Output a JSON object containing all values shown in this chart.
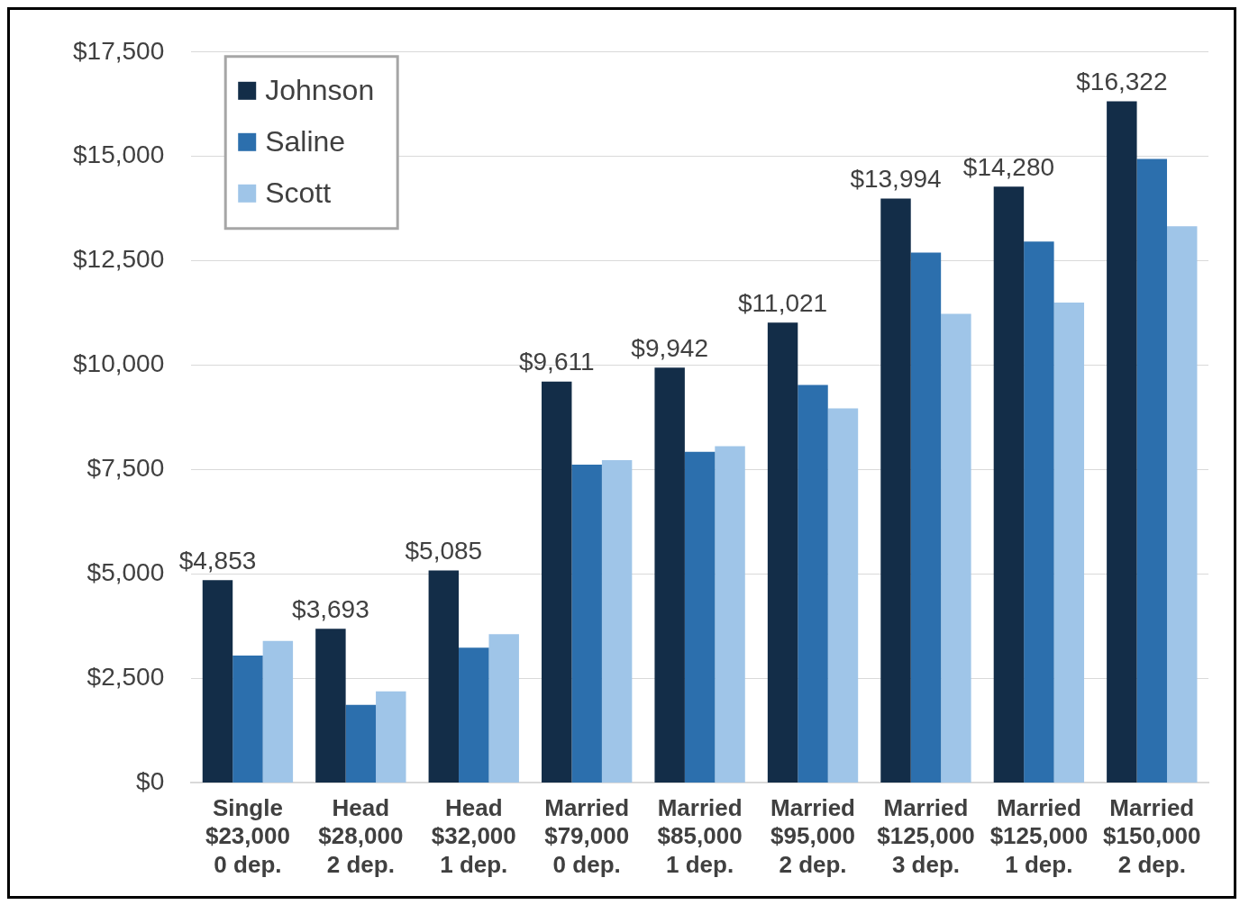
{
  "chart_data": {
    "type": "bar",
    "categories": [
      "Single\n$23,000\n0 dep.",
      "Head\n$28,000\n2 dep.",
      "Head\n$32,000\n1 dep.",
      "Married\n$79,000\n0 dep.",
      "Married\n$85,000\n1 dep.",
      "Married\n$95,000\n2 dep.",
      "Married\n$125,000\n3 dep.",
      "Married\n$125,000\n1 dep.",
      "Married\n$150,000\n2 dep."
    ],
    "series": [
      {
        "name": "Johnson",
        "color": "#132d48",
        "values": [
          4853,
          3693,
          5085,
          9611,
          9942,
          11021,
          13994,
          14280,
          16322
        ],
        "value_labels": [
          "$4,853",
          "$3,693",
          "$5,085",
          "$9,611",
          "$9,942",
          "$11,021",
          "$13,994",
          "$14,280",
          "$16,322"
        ]
      },
      {
        "name": "Saline",
        "color": "#2c6fad",
        "values": [
          3050,
          1870,
          3240,
          7620,
          7930,
          9530,
          12700,
          12960,
          14940
        ]
      },
      {
        "name": "Scott",
        "color": "#9fc5e8",
        "values": [
          3400,
          2190,
          3560,
          7730,
          8060,
          8970,
          11230,
          11500,
          13330
        ]
      }
    ],
    "ylim": [
      0,
      17500
    ],
    "yticks": [
      {
        "value": 0,
        "label": "$0"
      },
      {
        "value": 2500,
        "label": "$2,500"
      },
      {
        "value": 5000,
        "label": "$5,000"
      },
      {
        "value": 7500,
        "label": "$7,500"
      },
      {
        "value": 10000,
        "label": "$10,000"
      },
      {
        "value": 12500,
        "label": "$12,500"
      },
      {
        "value": 15000,
        "label": "$15,000"
      },
      {
        "value": 17500,
        "label": "$17,500"
      }
    ],
    "grid": "y",
    "legend": "top left"
  }
}
